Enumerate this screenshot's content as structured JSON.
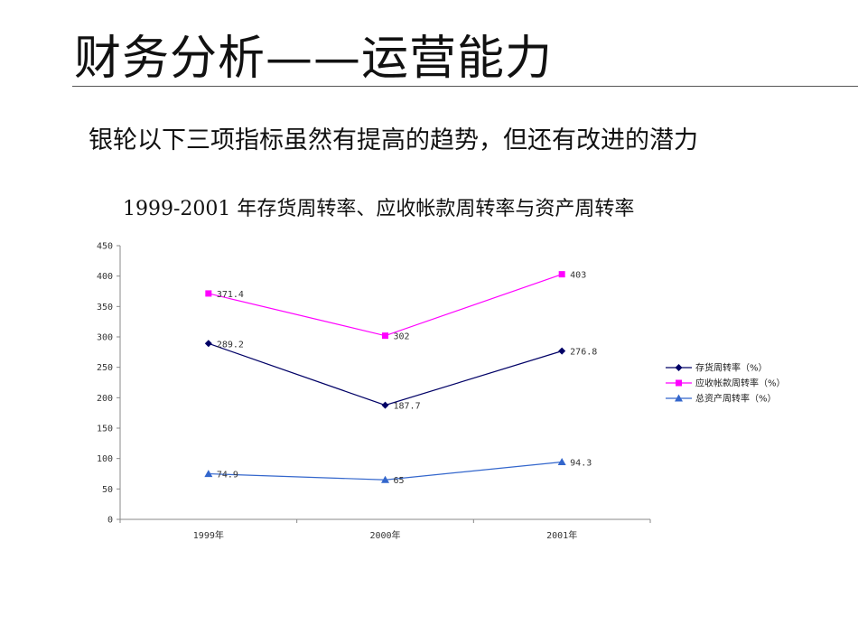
{
  "slide": {
    "title": "财务分析——运营能力",
    "subtitle": "银轮以下三项指标虽然有提高的趋势，但还有改进的潜力"
  },
  "chart_data": {
    "type": "line",
    "title": "1999-2001 年存货周转率、应收帐款周转率与资产周转率",
    "categories": [
      "1999年",
      "2000年",
      "2001年"
    ],
    "ylim": [
      0,
      450
    ],
    "yticks": [
      0,
      50,
      100,
      150,
      200,
      250,
      300,
      350,
      400,
      450
    ],
    "grid": false,
    "legend_position": "right",
    "series": [
      {
        "name": "存货周转率（%）",
        "values": [
          289.2,
          187.7,
          276.8
        ],
        "labels": [
          "289.2",
          "187.7",
          "276.8"
        ],
        "color": "#000066",
        "marker": "diamond"
      },
      {
        "name": "应收帐款周转率（%）",
        "values": [
          371.4,
          302,
          403
        ],
        "labels": [
          "371.4",
          "302",
          "403"
        ],
        "color": "#ff00ff",
        "marker": "square"
      },
      {
        "name": "总资产周转率（%）",
        "values": [
          74.9,
          65,
          94.3
        ],
        "labels": [
          "74.9",
          "65",
          "94.3"
        ],
        "color": "#3366cc",
        "marker": "triangle"
      }
    ]
  }
}
